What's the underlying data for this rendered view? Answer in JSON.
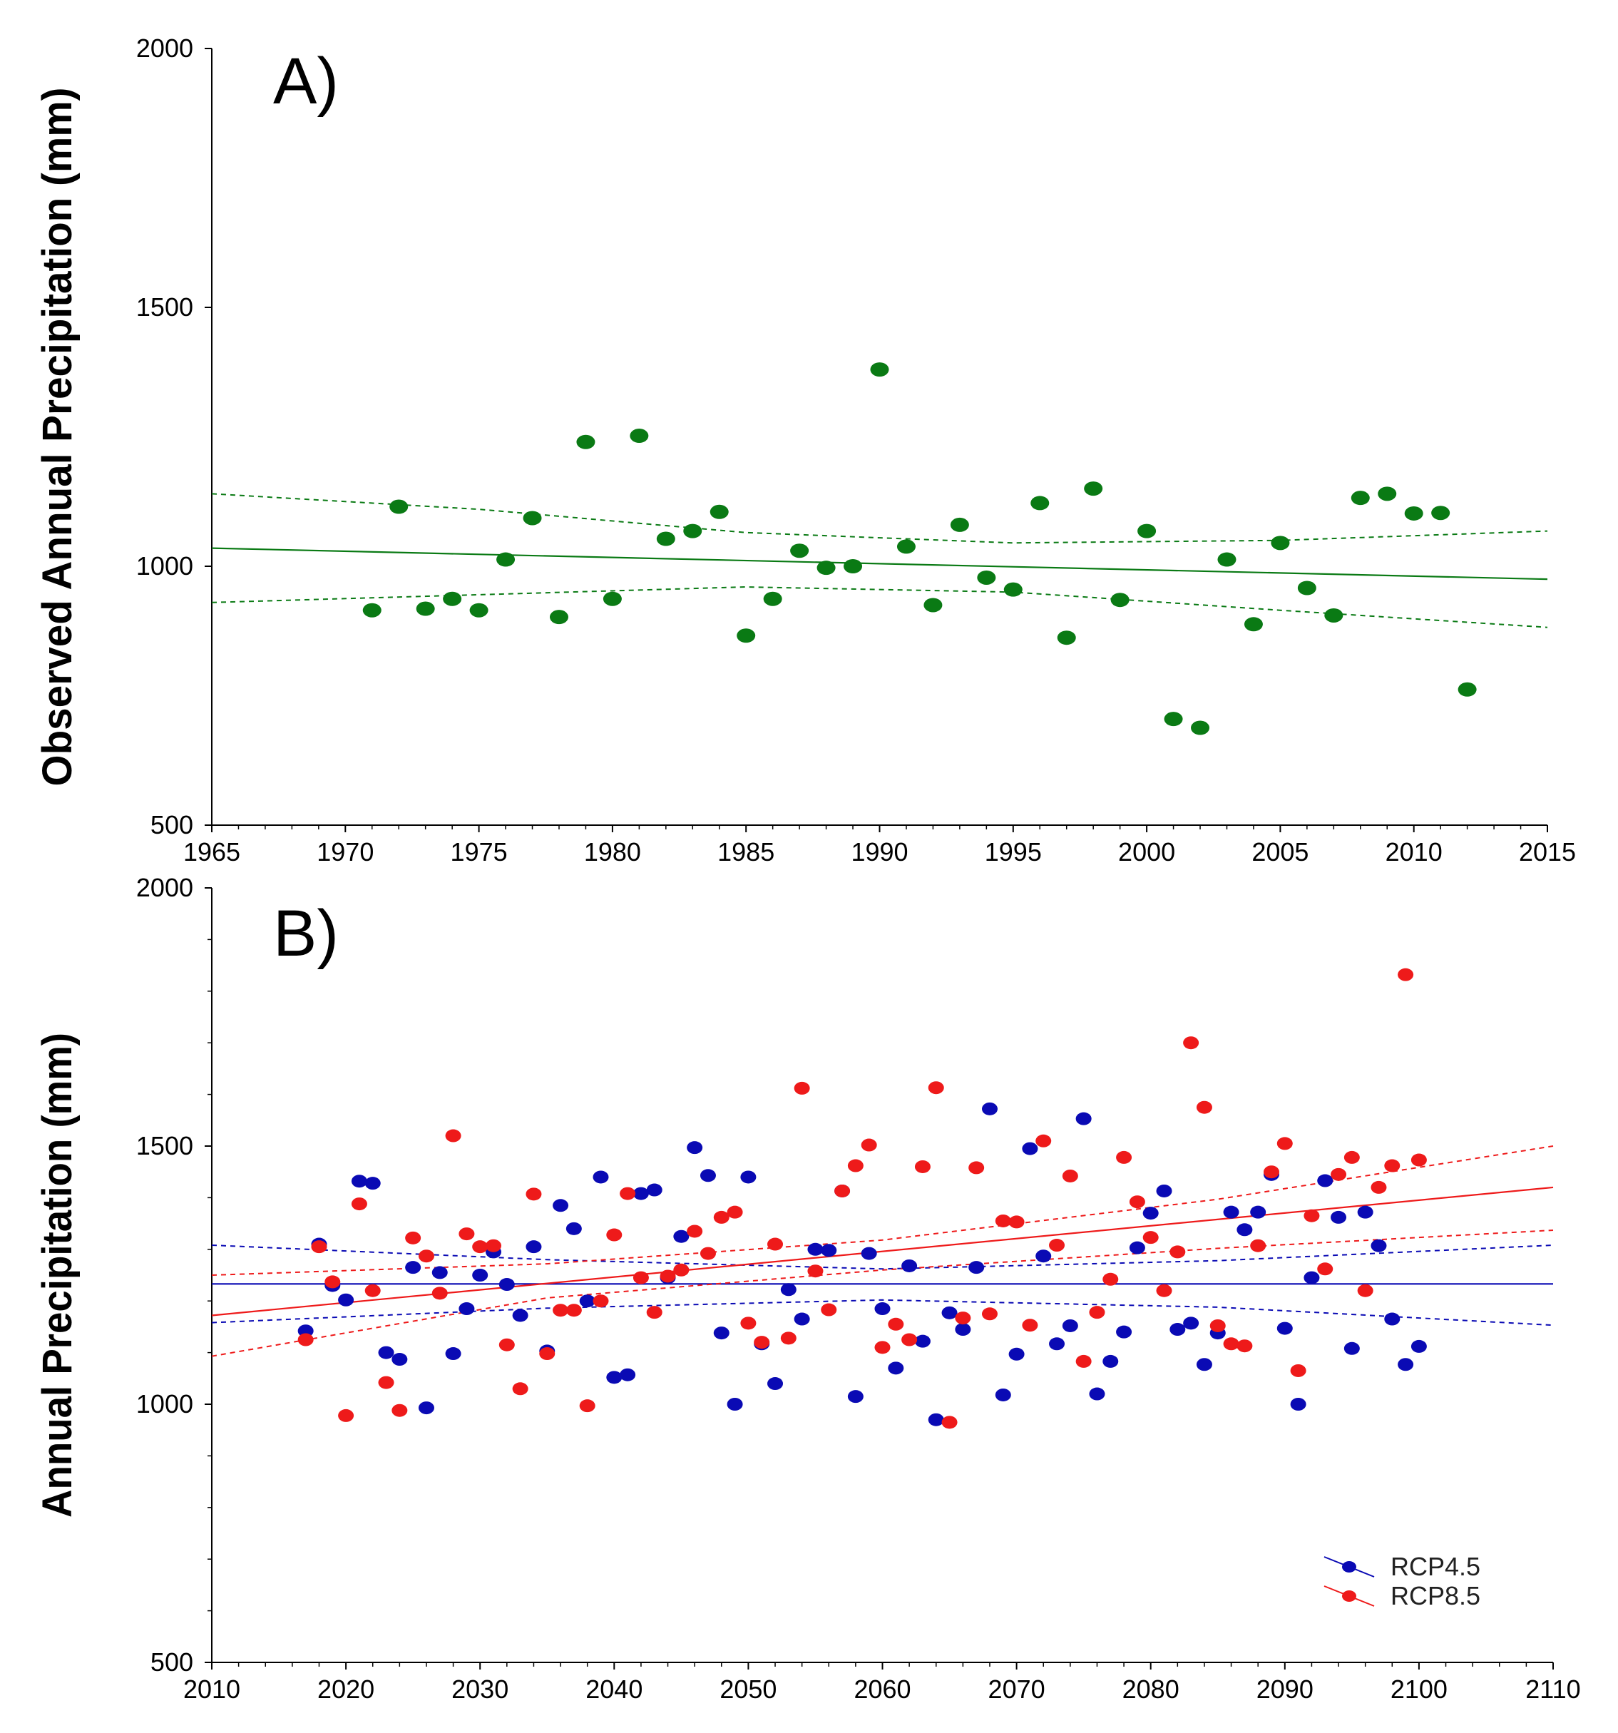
{
  "chart_data": [
    {
      "type": "scatter",
      "panel_label": "A)",
      "xlabel": "",
      "ylabel": "Observed Annual Precipitation (mm)",
      "xlim": [
        1965,
        2015
      ],
      "ylim": [
        500,
        2000
      ],
      "x_ticks": [
        1965,
        1970,
        1975,
        1980,
        1985,
        1990,
        1995,
        2000,
        2005,
        2010,
        2015
      ],
      "y_ticks": [
        500,
        1000,
        1500,
        2000
      ],
      "grid": false,
      "series": [
        {
          "color": "#0a7a14",
          "points": [
            [
              1971,
              915
            ],
            [
              1972,
              1115
            ],
            [
              1973,
              918
            ],
            [
              1974,
              937
            ],
            [
              1975,
              915
            ],
            [
              1976,
              1013
            ],
            [
              1977,
              1093
            ],
            [
              1978,
              902
            ],
            [
              1979,
              1240
            ],
            [
              1980,
              937
            ],
            [
              1981,
              1252
            ],
            [
              1982,
              1053
            ],
            [
              1983,
              1068
            ],
            [
              1984,
              1105
            ],
            [
              1985,
              866
            ],
            [
              1986,
              937
            ],
            [
              1987,
              1030
            ],
            [
              1988,
              997
            ],
            [
              1989,
              1000
            ],
            [
              1990,
              1380
            ],
            [
              1991,
              1038
            ],
            [
              1992,
              925
            ],
            [
              1993,
              1080
            ],
            [
              1994,
              978
            ],
            [
              1995,
              955
            ],
            [
              1996,
              1122
            ],
            [
              1997,
              862
            ],
            [
              1998,
              1150
            ],
            [
              1999,
              935
            ],
            [
              2000,
              1068
            ],
            [
              2001,
              705
            ],
            [
              2002,
              688
            ],
            [
              2003,
              1013
            ],
            [
              2004,
              888
            ],
            [
              2005,
              1045
            ],
            [
              2006,
              958
            ],
            [
              2007,
              905
            ],
            [
              2008,
              1132
            ],
            [
              2009,
              1140
            ],
            [
              2010,
              1102
            ],
            [
              2011,
              1103
            ],
            [
              2012,
              762
            ]
          ],
          "trend": [
            [
              1965,
              1035
            ],
            [
              2015,
              975
            ]
          ],
          "ci_upper": [
            [
              1965,
              1140
            ],
            [
              1975,
              1110
            ],
            [
              1985,
              1065
            ],
            [
              1995,
              1045
            ],
            [
              2005,
              1050
            ],
            [
              2015,
              1068
            ]
          ],
          "ci_lower": [
            [
              1965,
              930
            ],
            [
              1975,
              945
            ],
            [
              1985,
              960
            ],
            [
              1995,
              950
            ],
            [
              2005,
              915
            ],
            [
              2015,
              882
            ]
          ]
        }
      ]
    },
    {
      "type": "scatter",
      "panel_label": "B)",
      "xlabel": "",
      "ylabel": "Annual Precipitation (mm)",
      "xlim": [
        2010,
        2110
      ],
      "ylim": [
        500,
        2000
      ],
      "x_ticks": [
        2010,
        2020,
        2030,
        2040,
        2050,
        2060,
        2070,
        2080,
        2090,
        2100,
        2110
      ],
      "y_ticks": [
        500,
        1000,
        1500,
        2000
      ],
      "grid": false,
      "legend_position": "bottom-right",
      "series": [
        {
          "name": "RCP4.5",
          "color": "#0a0ab4",
          "points": [
            [
              2017,
              1142
            ],
            [
              2018,
              1310
            ],
            [
              2019,
              1230
            ],
            [
              2020,
              1202
            ],
            [
              2021,
              1432
            ],
            [
              2022,
              1428
            ],
            [
              2023,
              1100
            ],
            [
              2024,
              1087
            ],
            [
              2025,
              1265
            ],
            [
              2026,
              993
            ],
            [
              2027,
              1255
            ],
            [
              2028,
              1098
            ],
            [
              2029,
              1185
            ],
            [
              2030,
              1250
            ],
            [
              2031,
              1295
            ],
            [
              2032,
              1232
            ],
            [
              2033,
              1172
            ],
            [
              2034,
              1305
            ],
            [
              2035,
              1103
            ],
            [
              2036,
              1385
            ],
            [
              2037,
              1340
            ],
            [
              2038,
              1200
            ],
            [
              2039,
              1440
            ],
            [
              2040,
              1052
            ],
            [
              2041,
              1057
            ],
            [
              2042,
              1408
            ],
            [
              2043,
              1415
            ],
            [
              2044,
              1245
            ],
            [
              2045,
              1325
            ],
            [
              2046,
              1497
            ],
            [
              2047,
              1443
            ],
            [
              2048,
              1138
            ],
            [
              2049,
              1000
            ],
            [
              2050,
              1440
            ],
            [
              2051,
              1117
            ],
            [
              2052,
              1040
            ],
            [
              2053,
              1222
            ],
            [
              2054,
              1165
            ],
            [
              2055,
              1300
            ],
            [
              2056,
              1298
            ],
            [
              2057,
              1413
            ],
            [
              2058,
              1015
            ],
            [
              2059,
              1292
            ],
            [
              2060,
              1185
            ],
            [
              2061,
              1070
            ],
            [
              2062,
              1268
            ],
            [
              2063,
              1122
            ],
            [
              2064,
              970
            ],
            [
              2065,
              1177
            ],
            [
              2066,
              1145
            ],
            [
              2067,
              1265
            ],
            [
              2068,
              1572
            ],
            [
              2069,
              1018
            ],
            [
              2070,
              1097
            ],
            [
              2071,
              1495
            ],
            [
              2072,
              1287
            ],
            [
              2073,
              1117
            ],
            [
              2074,
              1152
            ],
            [
              2075,
              1553
            ],
            [
              2076,
              1020
            ],
            [
              2077,
              1083
            ],
            [
              2078,
              1140
            ],
            [
              2079,
              1303
            ],
            [
              2080,
              1370
            ],
            [
              2081,
              1413
            ],
            [
              2082,
              1145
            ],
            [
              2083,
              1157
            ],
            [
              2084,
              1077
            ],
            [
              2085,
              1138
            ],
            [
              2086,
              1372
            ],
            [
              2087,
              1338
            ],
            [
              2088,
              1372
            ],
            [
              2089,
              1445
            ],
            [
              2090,
              1147
            ],
            [
              2091,
              1000
            ],
            [
              2092,
              1245
            ],
            [
              2093,
              1433
            ],
            [
              2094,
              1362
            ],
            [
              2095,
              1108
            ],
            [
              2096,
              1372
            ],
            [
              2097,
              1307
            ],
            [
              2098,
              1165
            ],
            [
              2099,
              1077
            ],
            [
              2100,
              1112
            ]
          ],
          "trend": [
            [
              2010,
              1233
            ],
            [
              2110,
              1233
            ]
          ],
          "ci_upper": [
            [
              2010,
              1308
            ],
            [
              2035,
              1280
            ],
            [
              2060,
              1262
            ],
            [
              2085,
              1278
            ],
            [
              2110,
              1308
            ]
          ],
          "ci_lower": [
            [
              2010,
              1158
            ],
            [
              2035,
              1186
            ],
            [
              2060,
              1202
            ],
            [
              2085,
              1188
            ],
            [
              2110,
              1153
            ]
          ]
        },
        {
          "name": "RCP8.5",
          "color": "#ee1a1a",
          "points": [
            [
              2017,
              1125
            ],
            [
              2018,
              1305
            ],
            [
              2019,
              1237
            ],
            [
              2020,
              978
            ],
            [
              2021,
              1388
            ],
            [
              2022,
              1220
            ],
            [
              2023,
              1042
            ],
            [
              2024,
              988
            ],
            [
              2025,
              1322
            ],
            [
              2026,
              1287
            ],
            [
              2027,
              1215
            ],
            [
              2028,
              1520
            ],
            [
              2029,
              1330
            ],
            [
              2030,
              1305
            ],
            [
              2031,
              1307
            ],
            [
              2032,
              1115
            ],
            [
              2033,
              1030
            ],
            [
              2034,
              1407
            ],
            [
              2035,
              1098
            ],
            [
              2036,
              1182
            ],
            [
              2037,
              1182
            ],
            [
              2038,
              997
            ],
            [
              2039,
              1200
            ],
            [
              2040,
              1328
            ],
            [
              2041,
              1408
            ],
            [
              2042,
              1245
            ],
            [
              2043,
              1178
            ],
            [
              2044,
              1248
            ],
            [
              2045,
              1260
            ],
            [
              2046,
              1335
            ],
            [
              2047,
              1292
            ],
            [
              2048,
              1362
            ],
            [
              2049,
              1372
            ],
            [
              2050,
              1157
            ],
            [
              2051,
              1120
            ],
            [
              2052,
              1310
            ],
            [
              2053,
              1128
            ],
            [
              2054,
              1612
            ],
            [
              2055,
              1258
            ],
            [
              2056,
              1183
            ],
            [
              2057,
              1413
            ],
            [
              2058,
              1462
            ],
            [
              2059,
              1502
            ],
            [
              2060,
              1110
            ],
            [
              2061,
              1155
            ],
            [
              2062,
              1125
            ],
            [
              2063,
              1460
            ],
            [
              2064,
              1613
            ],
            [
              2065,
              965
            ],
            [
              2066,
              1167
            ],
            [
              2067,
              1458
            ],
            [
              2068,
              1175
            ],
            [
              2069,
              1355
            ],
            [
              2070,
              1353
            ],
            [
              2071,
              1153
            ],
            [
              2072,
              1510
            ],
            [
              2073,
              1308
            ],
            [
              2074,
              1442
            ],
            [
              2075,
              1083
            ],
            [
              2076,
              1178
            ],
            [
              2077,
              1242
            ],
            [
              2078,
              1478
            ],
            [
              2079,
              1392
            ],
            [
              2080,
              1323
            ],
            [
              2081,
              1220
            ],
            [
              2082,
              1295
            ],
            [
              2083,
              1700
            ],
            [
              2084,
              1575
            ],
            [
              2085,
              1152
            ],
            [
              2086,
              1117
            ],
            [
              2087,
              1113
            ],
            [
              2088,
              1307
            ],
            [
              2089,
              1450
            ],
            [
              2090,
              1505
            ],
            [
              2091,
              1065
            ],
            [
              2092,
              1365
            ],
            [
              2093,
              1262
            ],
            [
              2094,
              1445
            ],
            [
              2095,
              1478
            ],
            [
              2096,
              1220
            ],
            [
              2097,
              1420
            ],
            [
              2098,
              1462
            ],
            [
              2099,
              1832
            ],
            [
              2100,
              1473
            ]
          ],
          "trend": [
            [
              2010,
              1172
            ],
            [
              2110,
              1420
            ]
          ],
          "ci_upper": [
            [
              2010,
              1250
            ],
            [
              2035,
              1272
            ],
            [
              2060,
              1318
            ],
            [
              2085,
              1397
            ],
            [
              2110,
              1500
            ]
          ],
          "ci_lower": [
            [
              2010,
              1093
            ],
            [
              2035,
              1206
            ],
            [
              2060,
              1260
            ],
            [
              2085,
              1302
            ],
            [
              2110,
              1337
            ]
          ]
        }
      ]
    }
  ]
}
